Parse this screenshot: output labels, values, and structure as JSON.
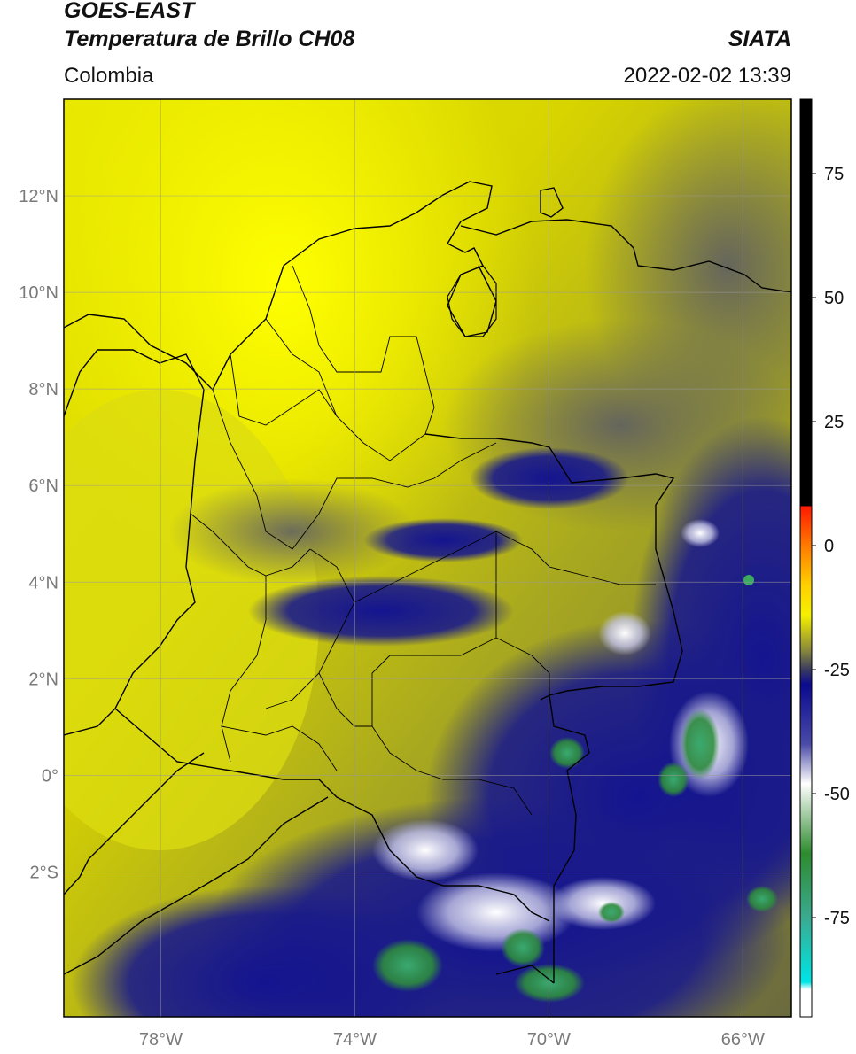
{
  "header": {
    "satellite": "GOES-EAST",
    "product": "Temperatura de Brillo CH08",
    "organization": "SIATA",
    "region": "Colombia",
    "timestamp": "2022-02-02 13:39"
  },
  "map": {
    "lon_range": [
      -80,
      -65
    ],
    "lat_range": [
      -5,
      14
    ],
    "gridlines": true,
    "lat_ticks": [
      {
        "value": 12,
        "label": "12°N"
      },
      {
        "value": 10,
        "label": "10°N"
      },
      {
        "value": 8,
        "label": "8°N"
      },
      {
        "value": 6,
        "label": "6°N"
      },
      {
        "value": 4,
        "label": "4°N"
      },
      {
        "value": 2,
        "label": "2°N"
      },
      {
        "value": 0,
        "label": "0°"
      },
      {
        "value": -2,
        "label": "2°S"
      }
    ],
    "lon_ticks": [
      {
        "value": -78,
        "label": "78°W"
      },
      {
        "value": -74,
        "label": "74°W"
      },
      {
        "value": -70,
        "label": "70°W"
      },
      {
        "value": -66,
        "label": "66°W"
      }
    ]
  },
  "colorbar": {
    "range": [
      -95,
      90
    ],
    "ticks": [
      {
        "value": 75,
        "label": "75"
      },
      {
        "value": 50,
        "label": "50"
      },
      {
        "value": 25,
        "label": "25"
      },
      {
        "value": 0,
        "label": "0"
      },
      {
        "value": -25,
        "label": "-25"
      },
      {
        "value": -50,
        "label": "-50"
      },
      {
        "value": -75,
        "label": "-75"
      }
    ],
    "stops": [
      {
        "value": 90,
        "color": "#000000"
      },
      {
        "value": 8,
        "color": "#000000"
      },
      {
        "value": 7.9,
        "color": "#ff1a00"
      },
      {
        "value": 0,
        "color": "#ff7a00"
      },
      {
        "value": -8,
        "color": "#ffd000"
      },
      {
        "value": -14,
        "color": "#f5f000"
      },
      {
        "value": -21,
        "color": "#8a8a3a"
      },
      {
        "value": -25,
        "color": "#3a3a60"
      },
      {
        "value": -28,
        "color": "#0a0a90"
      },
      {
        "value": -40,
        "color": "#4a4aa8"
      },
      {
        "value": -48,
        "color": "#ffffff"
      },
      {
        "value": -62,
        "color": "#2e8b2e"
      },
      {
        "value": -75,
        "color": "#3aaa90"
      },
      {
        "value": -88,
        "color": "#00e5e5"
      },
      {
        "value": -89.5,
        "color": "#ffffff"
      },
      {
        "value": -95,
        "color": "#ffffff"
      }
    ]
  }
}
